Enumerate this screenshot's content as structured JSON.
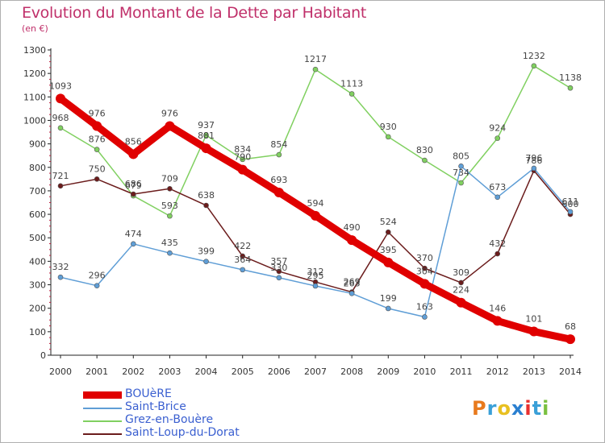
{
  "header": {
    "title": "Evolution du Montant de la Dette par Habitant",
    "subtitle": "(en €)"
  },
  "logo": {
    "text": "Proxiti",
    "colors": [
      "#e87a1d",
      "#3aa0d8",
      "#e8c020",
      "#2a7fd0",
      "#e83030",
      "#3aa0d8",
      "#7ac040"
    ]
  },
  "chart_data": {
    "type": "line",
    "x": [
      "2000",
      "2001",
      "2002",
      "2003",
      "2004",
      "2005",
      "2006",
      "2007",
      "2008",
      "2009",
      "2010",
      "2011",
      "2012",
      "2013",
      "2014"
    ],
    "ylim": [
      0,
      1300
    ],
    "yticks": [
      0,
      100,
      200,
      300,
      400,
      500,
      600,
      700,
      800,
      900,
      1000,
      1100,
      1200,
      1300
    ],
    "grid": false,
    "legend_position": "bottom-left",
    "series": [
      {
        "name": "BOUèRE",
        "color": "#e00000",
        "values": [
          1093,
          976,
          856,
          976,
          881,
          790,
          693,
          594,
          490,
          395,
          304,
          224,
          146,
          101,
          68
        ]
      },
      {
        "name": "Saint-Brice",
        "color": "#5f9ed6",
        "values": [
          332,
          296,
          474,
          435,
          399,
          364,
          330,
          295,
          263,
          199,
          163,
          805,
          673,
          796,
          611
        ]
      },
      {
        "name": "Grez-en-Bouère",
        "color": "#80d060",
        "values": [
          968,
          876,
          679,
          593,
          937,
          834,
          854,
          1217,
          1113,
          930,
          830,
          734,
          924,
          1232,
          1138
        ]
      },
      {
        "name": "Saint-Loup-du-Dorat",
        "color": "#6b1c1c",
        "values": [
          721,
          750,
          686,
          709,
          638,
          422,
          357,
          312,
          269,
          524,
          370,
          309,
          432,
          786,
          600
        ]
      }
    ]
  }
}
